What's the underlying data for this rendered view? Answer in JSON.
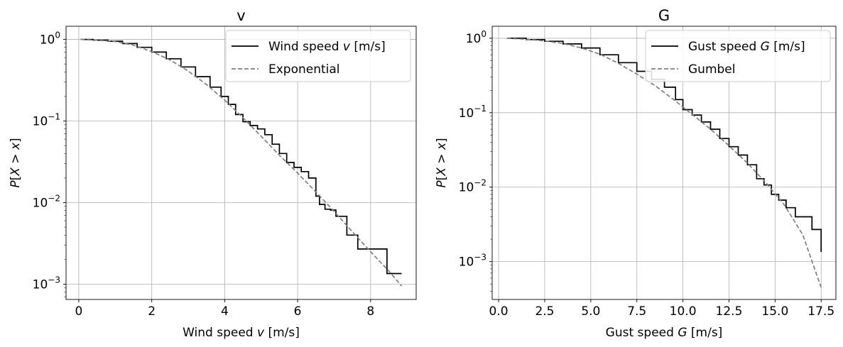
{
  "chart_data": [
    {
      "type": "line",
      "title": "v",
      "xlabel": "Wind speed $v$ [m/s]",
      "xlabel_parts": [
        "Wind speed ",
        "v",
        " [m/s]"
      ],
      "ylabel": "$P[X > x]$",
      "ylabel_parts": [
        "P",
        "[",
        "X",
        " > ",
        "x",
        "]"
      ],
      "xlim": [
        -0.35,
        9.25
      ],
      "ylim": [
        0.00065,
        1.45
      ],
      "yscale": "log",
      "grid": true,
      "legend_position": "upper right",
      "xticks": [
        0,
        2,
        4,
        6,
        8
      ],
      "xtick_labels": [
        "0",
        "2",
        "4",
        "6",
        "8"
      ],
      "yticks": [
        1,
        0.1,
        0.01,
        0.001
      ],
      "ytick_bases": [
        "10",
        "10",
        "10",
        "10"
      ],
      "ytick_exps": [
        "0",
        "−1",
        "−2",
        "−3"
      ],
      "series": [
        {
          "name": "Wind speed $v$ [m/s]",
          "legend_parts": [
            "Wind speed ",
            "v",
            " [m/s]"
          ],
          "style": "step",
          "color": "#000000",
          "x": [
            0.05,
            0.4,
            0.8,
            1.2,
            1.6,
            2.0,
            2.4,
            2.8,
            3.2,
            3.6,
            3.9,
            4.1,
            4.3,
            4.5,
            4.7,
            4.9,
            5.1,
            5.3,
            5.5,
            5.7,
            5.9,
            6.1,
            6.3,
            6.5,
            6.6,
            6.75,
            6.9,
            7.05,
            7.35,
            7.65,
            8.45,
            8.85
          ],
          "y": [
            1.0,
            0.98,
            0.95,
            0.89,
            0.8,
            0.7,
            0.58,
            0.46,
            0.35,
            0.26,
            0.2,
            0.16,
            0.12,
            0.098,
            0.088,
            0.08,
            0.068,
            0.052,
            0.04,
            0.031,
            0.027,
            0.024,
            0.02,
            0.012,
            0.0095,
            0.0083,
            0.0081,
            0.0068,
            0.004,
            0.0027,
            0.00135,
            0.00135
          ]
        },
        {
          "name": "Exponential",
          "legend_parts": [
            "Exponential"
          ],
          "style": "dashed",
          "color": "#808080",
          "x": [
            0.05,
            0.5,
            1.0,
            1.5,
            2.0,
            2.5,
            3.0,
            3.5,
            4.0,
            4.5,
            5.0,
            5.5,
            6.0,
            6.5,
            7.0,
            7.5,
            8.0,
            8.5,
            8.85
          ],
          "y": [
            1.0,
            0.98,
            0.94,
            0.85,
            0.71,
            0.56,
            0.41,
            0.28,
            0.18,
            0.11,
            0.065,
            0.038,
            0.023,
            0.0135,
            0.0078,
            0.0044,
            0.0025,
            0.00145,
            0.00095
          ]
        }
      ]
    },
    {
      "type": "line",
      "title": "G",
      "xlabel": "Gust speed $G$ [m/s]",
      "xlabel_parts": [
        "Gust speed ",
        "G",
        " [m/s]"
      ],
      "ylabel": "$P[X > x]$",
      "ylabel_parts": [
        "P",
        "[",
        "X",
        " > ",
        "x",
        "]"
      ],
      "xlim": [
        -0.35,
        18.3
      ],
      "ylim": [
        0.00031,
        1.45
      ],
      "yscale": "log",
      "grid": true,
      "legend_position": "upper right",
      "xticks": [
        0,
        2.5,
        5,
        7.5,
        10,
        12.5,
        15,
        17.5
      ],
      "xtick_labels": [
        "0.0",
        "2.5",
        "5.0",
        "7.5",
        "10.0",
        "12.5",
        "15.0",
        "17.5"
      ],
      "yticks": [
        1,
        0.1,
        0.01,
        0.001
      ],
      "ytick_bases": [
        "10",
        "10",
        "10",
        "10"
      ],
      "ytick_exps": [
        "0",
        "−1",
        "−2",
        "−3"
      ],
      "series": [
        {
          "name": "Gust speed $G$ [m/s]",
          "legend_parts": [
            "Gust speed ",
            "G",
            " [m/s]"
          ],
          "style": "step",
          "color": "#000000",
          "x": [
            0.45,
            1.5,
            2.5,
            3.5,
            4.5,
            5.5,
            6.5,
            7.5,
            8.3,
            9.0,
            9.6,
            10.0,
            10.5,
            11.0,
            11.5,
            12.0,
            12.5,
            13.0,
            13.5,
            14.0,
            14.4,
            14.8,
            15.2,
            15.6,
            16.1,
            17.0,
            17.5
          ],
          "y": [
            1.0,
            0.96,
            0.91,
            0.84,
            0.74,
            0.6,
            0.47,
            0.36,
            0.28,
            0.22,
            0.15,
            0.11,
            0.093,
            0.075,
            0.06,
            0.045,
            0.035,
            0.027,
            0.02,
            0.013,
            0.0107,
            0.008,
            0.0067,
            0.0053,
            0.004,
            0.0027,
            0.00135
          ]
        },
        {
          "name": "Gumbel",
          "legend_parts": [
            "Gumbel"
          ],
          "style": "dashed",
          "color": "#808080",
          "x": [
            0.45,
            1.5,
            2.5,
            3.5,
            4.5,
            5.5,
            6.5,
            7.5,
            8.5,
            9.5,
            10.5,
            11.5,
            12.5,
            13.5,
            14.5,
            15.5,
            16.5,
            17.5
          ],
          "y": [
            1.0,
            0.97,
            0.92,
            0.85,
            0.74,
            0.61,
            0.46,
            0.33,
            0.23,
            0.15,
            0.095,
            0.06,
            0.036,
            0.021,
            0.0115,
            0.0058,
            0.0023,
            0.00045
          ]
        }
      ]
    }
  ]
}
